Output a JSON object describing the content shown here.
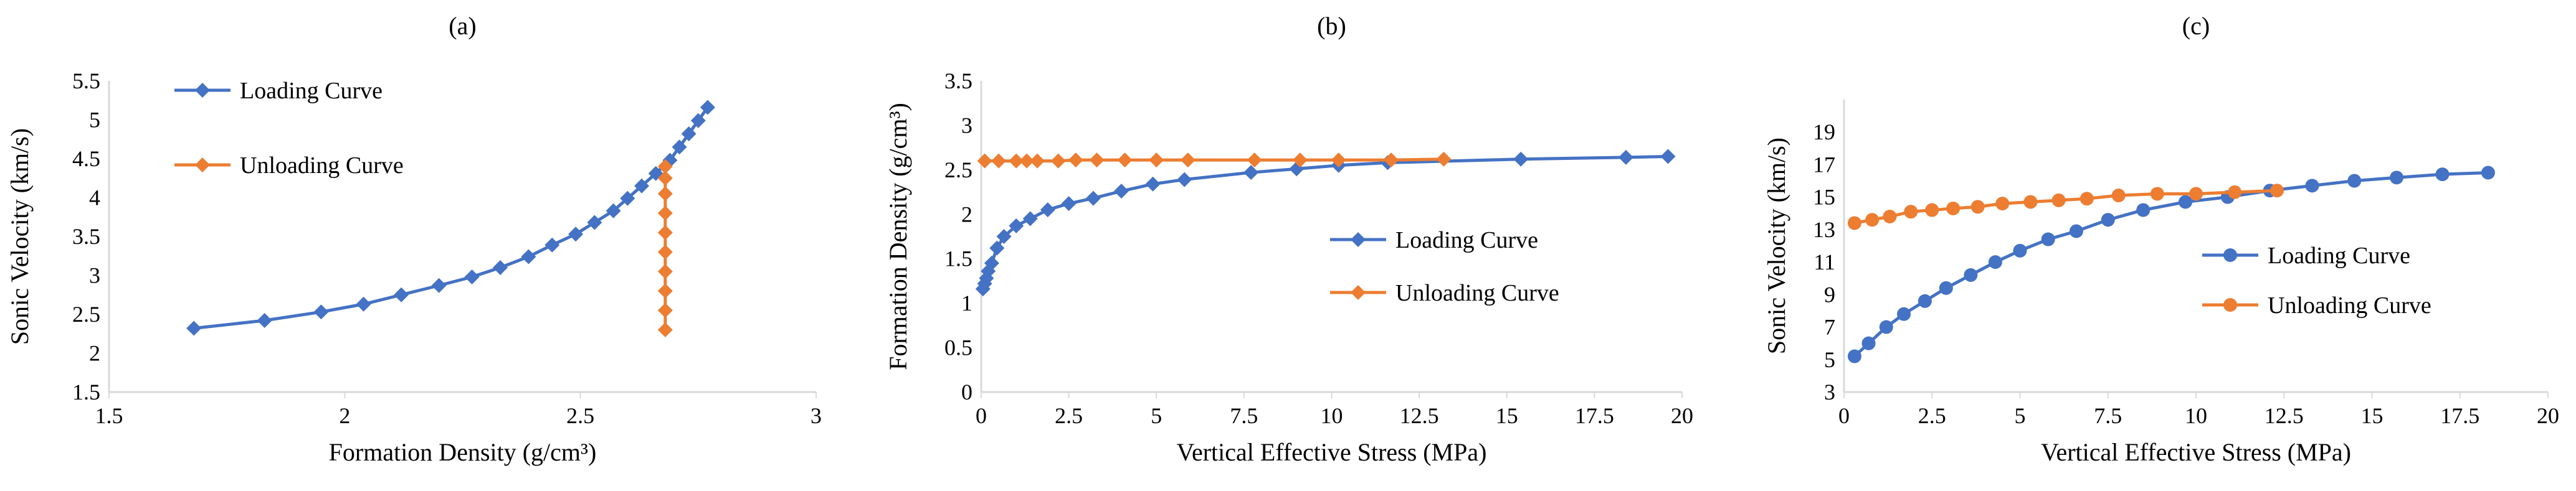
{
  "colors": {
    "loading": "#4472C4",
    "unloading": "#ED7D31",
    "axis": "#D9D9D9",
    "text": "#000000"
  },
  "chart_data": [
    {
      "panel": "(a)",
      "type": "line",
      "title": "(a)",
      "xlabel": "Formation Density (g/cm³)",
      "ylabel": "Sonic Velocity (km/s)",
      "xlim": [
        1.5,
        3
      ],
      "ylim": [
        1.5,
        5.5
      ],
      "xticks": [
        1.5,
        2,
        2.5,
        3
      ],
      "xtick_labels": [
        "1.5",
        "2",
        "2.5",
        "3"
      ],
      "yticks": [
        1.5,
        2,
        2.5,
        3,
        3.5,
        4,
        4.5,
        5,
        5.5
      ],
      "ytick_labels": [
        "1.5",
        "2",
        "2.5",
        "3",
        "3.5",
        "4",
        "4.5",
        "5",
        "5.5"
      ],
      "legend_position": "top-left",
      "marker": "diamond",
      "series": [
        {
          "name": "Loading Curve",
          "x": [
            1.68,
            1.83,
            1.95,
            2.04,
            2.12,
            2.2,
            2.27,
            2.33,
            2.39,
            2.44,
            2.49,
            2.53,
            2.57,
            2.6,
            2.63,
            2.66,
            2.69,
            2.71,
            2.73,
            2.75,
            2.77
          ],
          "y": [
            2.32,
            2.42,
            2.53,
            2.63,
            2.75,
            2.87,
            2.98,
            3.1,
            3.24,
            3.39,
            3.53,
            3.68,
            3.83,
            3.99,
            4.15,
            4.31,
            4.48,
            4.65,
            4.82,
            4.99,
            5.16
          ]
        },
        {
          "name": "Unloading Curve",
          "x": [
            2.68,
            2.68,
            2.68,
            2.68,
            2.68,
            2.68,
            2.68,
            2.68,
            2.68,
            2.68
          ],
          "y": [
            2.3,
            2.55,
            2.8,
            3.05,
            3.3,
            3.55,
            3.8,
            4.05,
            4.25,
            4.4
          ]
        }
      ]
    },
    {
      "panel": "(b)",
      "type": "line",
      "title": "(b)",
      "xlabel": "Vertical Effective Stress (MPa)",
      "ylabel": "Formation Density (g/cm³)",
      "xlim": [
        0,
        20
      ],
      "ylim": [
        0,
        3.5
      ],
      "xticks": [
        0,
        2.5,
        5,
        7.5,
        10,
        12.5,
        15,
        17.5,
        20
      ],
      "xtick_labels": [
        "0",
        "2.5",
        "5",
        "7.5",
        "10",
        "12.5",
        "15",
        "17.5",
        "20"
      ],
      "yticks": [
        0,
        0.5,
        1,
        1.5,
        2,
        2.5,
        3,
        3.5
      ],
      "ytick_labels": [
        "0",
        "0.5",
        "1",
        "1.5",
        "2",
        "2.5",
        "3",
        "3.5"
      ],
      "legend_position": "center-right",
      "marker": "diamond",
      "series": [
        {
          "name": "Loading Curve",
          "x": [
            0.05,
            0.1,
            0.15,
            0.2,
            0.3,
            0.45,
            0.65,
            1.0,
            1.4,
            1.9,
            2.5,
            3.2,
            4.0,
            4.9,
            5.8,
            7.7,
            9.0,
            10.2,
            11.6,
            15.4,
            18.4,
            19.6
          ],
          "y": [
            1.16,
            1.22,
            1.28,
            1.36,
            1.45,
            1.62,
            1.75,
            1.87,
            1.95,
            2.05,
            2.12,
            2.18,
            2.26,
            2.34,
            2.39,
            2.47,
            2.51,
            2.55,
            2.58,
            2.62,
            2.64,
            2.65
          ]
        },
        {
          "name": "Unloading Curve",
          "x": [
            0.1,
            0.5,
            1.0,
            1.3,
            1.6,
            2.2,
            2.7,
            3.3,
            4.1,
            5.0,
            5.9,
            7.8,
            9.1,
            10.2,
            11.7,
            13.2
          ],
          "y": [
            2.6,
            2.6,
            2.6,
            2.6,
            2.6,
            2.6,
            2.61,
            2.61,
            2.61,
            2.61,
            2.61,
            2.61,
            2.61,
            2.61,
            2.61,
            2.62
          ]
        }
      ]
    },
    {
      "panel": "(c)",
      "type": "line",
      "title": "(c)",
      "xlabel": "Vertical Effective Stress (MPa)",
      "ylabel": "Sonic Velocity (km/s)",
      "xlim": [
        0,
        20
      ],
      "ylim": [
        3,
        21
      ],
      "xticks": [
        0,
        2.5,
        5,
        7.5,
        10,
        12.5,
        15,
        17.5,
        20
      ],
      "xtick_labels": [
        "0",
        "2.5",
        "5",
        "7.5",
        "10",
        "12.5",
        "15",
        "17.5",
        "20"
      ],
      "yticks": [
        3,
        5,
        7,
        9,
        11,
        13,
        15,
        17,
        19
      ],
      "ytick_labels": [
        "3",
        "5",
        "7",
        "9",
        "11",
        "13",
        "15",
        "17",
        "19"
      ],
      "legend_position": "center-right",
      "marker": "circle",
      "series": [
        {
          "name": "Loading Curve",
          "x": [
            0.3,
            0.7,
            1.2,
            1.7,
            2.3,
            2.9,
            3.6,
            4.3,
            5.0,
            5.8,
            6.6,
            7.5,
            8.5,
            9.7,
            10.9,
            12.1,
            13.3,
            14.5,
            15.7,
            17.0,
            18.3
          ],
          "y": [
            5.2,
            6.0,
            7.0,
            7.8,
            8.6,
            9.4,
            10.2,
            11.0,
            11.7,
            12.4,
            12.9,
            13.6,
            14.2,
            14.7,
            15.0,
            15.4,
            15.7,
            16.0,
            16.2,
            16.4,
            16.5
          ]
        },
        {
          "name": "Unloading Curve",
          "x": [
            0.3,
            0.8,
            1.3,
            1.9,
            2.5,
            3.1,
            3.8,
            4.5,
            5.3,
            6.1,
            6.9,
            7.8,
            8.9,
            10.0,
            11.1,
            12.3
          ],
          "y": [
            13.4,
            13.6,
            13.8,
            14.1,
            14.2,
            14.3,
            14.4,
            14.6,
            14.7,
            14.8,
            14.9,
            15.1,
            15.2,
            15.2,
            15.3,
            15.4
          ]
        }
      ]
    }
  ]
}
